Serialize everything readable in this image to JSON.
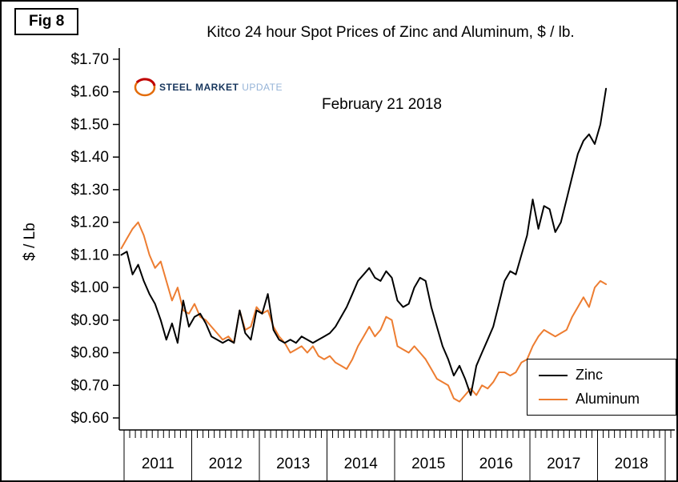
{
  "fig_label": "Fig 8",
  "logo": {
    "word1": "STEEL",
    "word2": "MARKET",
    "word3": "UPDATE"
  },
  "y_axis": {
    "ticks": [
      {
        "value": 1.7,
        "label": "$1.70"
      },
      {
        "value": 1.6,
        "label": "$1.60"
      },
      {
        "value": 1.5,
        "label": "$1.50"
      },
      {
        "value": 1.4,
        "label": "$1.40"
      },
      {
        "value": 1.3,
        "label": "$1.30"
      },
      {
        "value": 1.2,
        "label": "$1.20"
      },
      {
        "value": 1.1,
        "label": "$1.10"
      },
      {
        "value": 1.0,
        "label": "$1.00"
      },
      {
        "value": 0.9,
        "label": "$0.90"
      },
      {
        "value": 0.8,
        "label": "$0.80"
      },
      {
        "value": 0.7,
        "label": "$0.70"
      },
      {
        "value": 0.6,
        "label": "$0.60"
      }
    ]
  },
  "x_axis": {
    "year_labels": [
      "2011",
      "2012",
      "2013",
      "2014",
      "2015",
      "2016",
      "2017",
      "2018"
    ]
  },
  "chart_data": {
    "type": "line",
    "title": "Kitco 24 hour Spot Prices of Zinc and Aluminum, $ / lb.",
    "annotation": "February 21 2018",
    "ylabel": "$ / Lb",
    "xlabel": "",
    "ylim": [
      0.6,
      1.7
    ],
    "y_tick_step": 0.1,
    "grid": false,
    "legend_position": "bottom-right",
    "frequency": "monthly",
    "months": [
      "2010-12",
      "2011-01",
      "2011-02",
      "2011-03",
      "2011-04",
      "2011-05",
      "2011-06",
      "2011-07",
      "2011-08",
      "2011-09",
      "2011-10",
      "2011-11",
      "2011-12",
      "2012-01",
      "2012-02",
      "2012-03",
      "2012-04",
      "2012-05",
      "2012-06",
      "2012-07",
      "2012-08",
      "2012-09",
      "2012-10",
      "2012-11",
      "2012-12",
      "2013-01",
      "2013-02",
      "2013-03",
      "2013-04",
      "2013-05",
      "2013-06",
      "2013-07",
      "2013-08",
      "2013-09",
      "2013-10",
      "2013-11",
      "2013-12",
      "2014-01",
      "2014-02",
      "2014-03",
      "2014-04",
      "2014-05",
      "2014-06",
      "2014-07",
      "2014-08",
      "2014-09",
      "2014-10",
      "2014-11",
      "2014-12",
      "2015-01",
      "2015-02",
      "2015-03",
      "2015-04",
      "2015-05",
      "2015-06",
      "2015-07",
      "2015-08",
      "2015-09",
      "2015-10",
      "2015-11",
      "2015-12",
      "2016-01",
      "2016-02",
      "2016-03",
      "2016-04",
      "2016-05",
      "2016-06",
      "2016-07",
      "2016-08",
      "2016-09",
      "2016-10",
      "2016-11",
      "2016-12",
      "2017-01",
      "2017-02",
      "2017-03",
      "2017-04",
      "2017-05",
      "2017-06",
      "2017-07",
      "2017-08",
      "2017-09",
      "2017-10",
      "2017-11",
      "2017-12",
      "2018-01",
      "2018-02"
    ],
    "series": [
      {
        "name": "Zinc",
        "color": "#000000",
        "values": [
          1.1,
          1.11,
          1.04,
          1.07,
          1.02,
          0.98,
          0.95,
          0.9,
          0.84,
          0.89,
          0.83,
          0.96,
          0.88,
          0.91,
          0.92,
          0.89,
          0.85,
          0.84,
          0.83,
          0.84,
          0.83,
          0.93,
          0.86,
          0.84,
          0.93,
          0.92,
          0.98,
          0.87,
          0.84,
          0.83,
          0.84,
          0.83,
          0.85,
          0.84,
          0.83,
          0.84,
          0.85,
          0.86,
          0.88,
          0.91,
          0.94,
          0.98,
          1.02,
          1.04,
          1.06,
          1.03,
          1.02,
          1.05,
          1.03,
          0.96,
          0.94,
          0.95,
          1.0,
          1.03,
          1.02,
          0.94,
          0.88,
          0.82,
          0.78,
          0.73,
          0.76,
          0.72,
          0.67,
          0.76,
          0.8,
          0.84,
          0.88,
          0.95,
          1.02,
          1.05,
          1.04,
          1.1,
          1.16,
          1.27,
          1.18,
          1.25,
          1.24,
          1.17,
          1.2,
          1.27,
          1.34,
          1.41,
          1.45,
          1.47,
          1.44,
          1.5,
          1.61
        ]
      },
      {
        "name": "Aluminum",
        "color": "#ED7D31",
        "values": [
          1.12,
          1.15,
          1.18,
          1.2,
          1.16,
          1.1,
          1.06,
          1.08,
          1.02,
          0.96,
          1.0,
          0.93,
          0.92,
          0.95,
          0.91,
          0.9,
          0.88,
          0.86,
          0.84,
          0.85,
          0.83,
          0.93,
          0.87,
          0.88,
          0.94,
          0.92,
          0.93,
          0.88,
          0.85,
          0.83,
          0.8,
          0.81,
          0.82,
          0.8,
          0.82,
          0.79,
          0.78,
          0.79,
          0.77,
          0.76,
          0.75,
          0.78,
          0.82,
          0.85,
          0.88,
          0.85,
          0.87,
          0.91,
          0.9,
          0.82,
          0.81,
          0.8,
          0.82,
          0.8,
          0.78,
          0.75,
          0.72,
          0.71,
          0.7,
          0.66,
          0.65,
          0.67,
          0.69,
          0.67,
          0.7,
          0.69,
          0.71,
          0.74,
          0.74,
          0.73,
          0.74,
          0.77,
          0.78,
          0.82,
          0.85,
          0.87,
          0.86,
          0.85,
          0.86,
          0.87,
          0.91,
          0.94,
          0.97,
          0.94,
          1.0,
          1.02,
          1.01
        ]
      }
    ]
  }
}
